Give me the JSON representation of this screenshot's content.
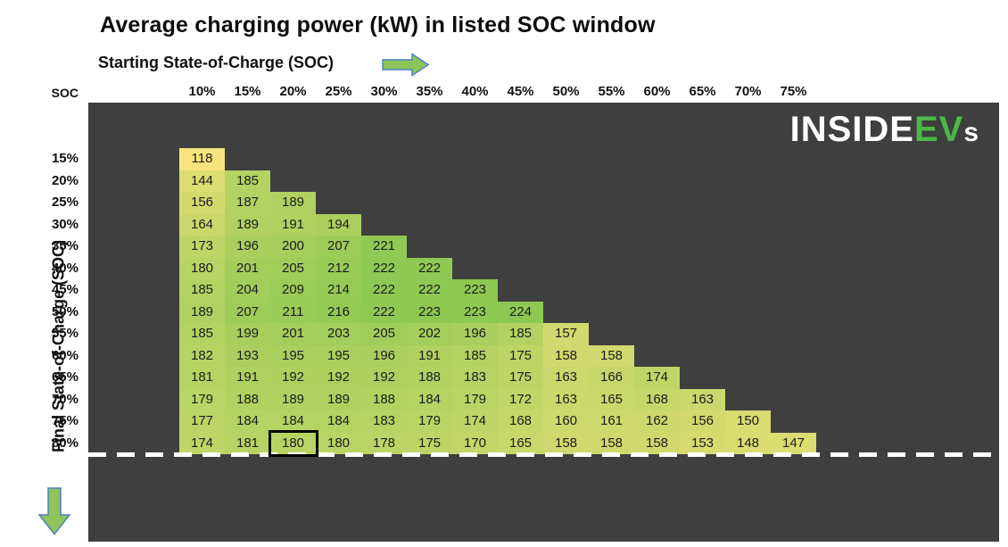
{
  "header": {
    "title": "Average charging power (kW) in listed SOC window",
    "x_axis_label": "Starting State-of-Charge (SOC)",
    "corner_label": "SOC"
  },
  "y_axis": {
    "label": "Final State-of-Charge  (SOC)"
  },
  "logo": {
    "part1": "INSIDE",
    "part2": "EV",
    "part3": "s"
  },
  "colors": {
    "panel_background": "#3F3F3F",
    "cell_text": "#1C1C1C",
    "arrow_fill": "#8EC45A",
    "arrow_stroke": "#4F81BD",
    "dash_line": "#FFFFFF",
    "logo_white": "#FFFFFF",
    "logo_green": "#4DB848",
    "highlight_border": "#000000"
  },
  "chart_data": {
    "type": "heatmap",
    "title": "Average charging power (kW) in listed SOC window",
    "xlabel": "Starting State-of-Charge (SOC)",
    "ylabel": "Final State-of-Charge (SOC)",
    "value_unit": "kW",
    "columns": [
      "10%",
      "15%",
      "20%",
      "25%",
      "30%",
      "35%",
      "40%",
      "45%",
      "50%",
      "55%",
      "60%",
      "65%",
      "70%",
      "75%"
    ],
    "rows": [
      "15%",
      "20%",
      "25%",
      "30%",
      "35%",
      "40%",
      "45%",
      "50%",
      "55%",
      "60%",
      "65%",
      "70%",
      "75%",
      "80%"
    ],
    "values": [
      [
        118
      ],
      [
        144,
        185
      ],
      [
        156,
        187,
        189
      ],
      [
        164,
        189,
        191,
        194
      ],
      [
        173,
        196,
        200,
        207,
        221
      ],
      [
        180,
        201,
        205,
        212,
        222,
        222
      ],
      [
        185,
        204,
        209,
        214,
        222,
        222,
        223
      ],
      [
        189,
        207,
        211,
        216,
        222,
        223,
        223,
        224
      ],
      [
        185,
        199,
        201,
        203,
        205,
        202,
        196,
        185,
        157
      ],
      [
        182,
        193,
        195,
        195,
        196,
        191,
        185,
        175,
        158,
        158
      ],
      [
        181,
        191,
        192,
        192,
        192,
        188,
        183,
        175,
        163,
        166,
        174
      ],
      [
        179,
        188,
        189,
        189,
        188,
        184,
        179,
        172,
        163,
        165,
        168,
        163
      ],
      [
        177,
        184,
        184,
        184,
        183,
        179,
        174,
        168,
        160,
        161,
        162,
        156,
        150
      ],
      [
        174,
        181,
        180,
        180,
        178,
        175,
        170,
        165,
        158,
        158,
        158,
        153,
        148,
        147
      ]
    ],
    "color_scale": {
      "min_value": 118,
      "max_value": 224,
      "min_color": "#F8E47E",
      "max_color": "#8DC852"
    },
    "highlighted_cell": {
      "row": "80%",
      "column": "20%",
      "value": 180
    },
    "grid": false,
    "legend": false,
    "dashed_line_after_row": "80%"
  }
}
